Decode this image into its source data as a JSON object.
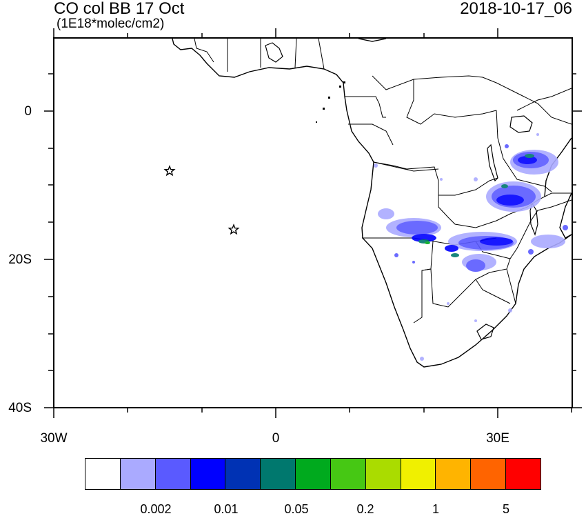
{
  "header": {
    "title": "CO col BB 17 Oct",
    "units": "(1E18*molec/cm2)",
    "timestamp": "2018-10-17_06"
  },
  "axes": {
    "y_labels": [
      "0",
      "20S",
      "40S"
    ],
    "x_labels": [
      "30W",
      "0",
      "30E"
    ]
  },
  "colorbar": {
    "colors": [
      "#ffffff",
      "#aaaaff",
      "#5a5aff",
      "#0000ff",
      "#0032b4",
      "#00786e",
      "#00aa1e",
      "#46c814",
      "#aadc00",
      "#f0f000",
      "#ffb400",
      "#ff6400",
      "#ff0000"
    ],
    "labels": [
      "0.002",
      "0.01",
      "0.05",
      "0.2",
      "1",
      "5"
    ]
  },
  "map": {
    "region": "Southern Africa and South Atlantic",
    "markers": [
      "star",
      "star"
    ]
  }
}
